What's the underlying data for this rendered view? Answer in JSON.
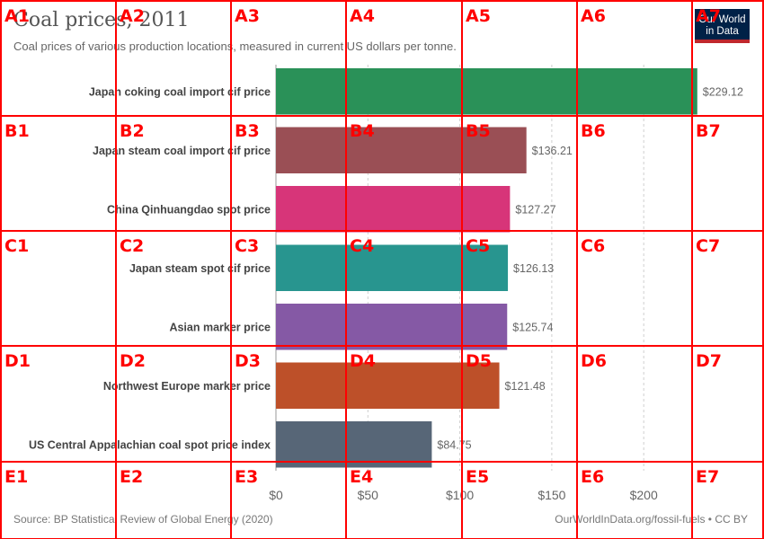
{
  "header": {
    "title": "Coal prices, 2011",
    "subtitle": "Coal prices of various production locations, measured in current US dollars per tonne."
  },
  "logo": {
    "line1": "Our World",
    "line2": "in Data"
  },
  "footer": {
    "source": "Source: BP Statistical Review of Global Energy (2020)",
    "url": "OurWorldInData.org/fossil-fuels • CC BY"
  },
  "chart_data": {
    "type": "bar",
    "orientation": "horizontal",
    "title": "Coal prices, 2011",
    "subtitle": "Coal prices of various production locations, measured in current US dollars per tonne.",
    "categories": [
      "Japan coking coal import cif price",
      "Japan steam coal import cif price",
      "China Qinhuangdao spot price",
      "Japan steam spot cif price",
      "Asian marker price",
      "Northwest Europe marker price",
      "US Central Appalachian coal spot price index"
    ],
    "values": [
      229.12,
      136.21,
      127.27,
      126.13,
      125.74,
      121.48,
      84.75
    ],
    "value_labels": [
      "$229.12",
      "$136.21",
      "$127.27",
      "$126.13",
      "$125.74",
      "$121.48",
      "$84.75"
    ],
    "colors": [
      "#2a9158",
      "#9a4f55",
      "#d73579",
      "#28958f",
      "#8559a5",
      "#bd5029",
      "#576677"
    ],
    "xticks": [
      0,
      50,
      100,
      150,
      200
    ],
    "xtick_labels": [
      "$0",
      "$50",
      "$100",
      "$150",
      "$200"
    ],
    "xlim": [
      0,
      230
    ],
    "grid": "vertical dashed",
    "xlabel": "",
    "ylabel": ""
  },
  "overlay": {
    "color": "#ff0000",
    "columns": [
      "1",
      "2",
      "3",
      "4",
      "5",
      "6",
      "7"
    ],
    "rows": [
      "A",
      "B",
      "C",
      "D",
      "E"
    ]
  }
}
